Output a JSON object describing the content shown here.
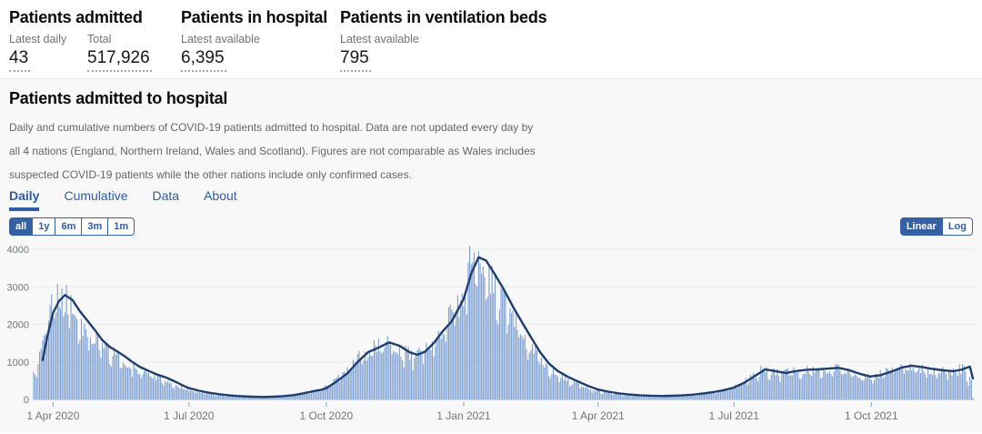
{
  "metrics": [
    {
      "title": "Patients admitted",
      "stats": [
        {
          "label": "Latest daily",
          "value": "43"
        },
        {
          "label": "Total",
          "value": "517,926"
        }
      ]
    },
    {
      "title": "Patients in hospital",
      "stats": [
        {
          "label": "Latest available",
          "value": "6,395"
        }
      ]
    },
    {
      "title": "Patients in ventilation beds",
      "stats": [
        {
          "label": "Latest available",
          "value": "795"
        }
      ]
    }
  ],
  "panel": {
    "title": "Patients admitted to hospital",
    "description_lines": [
      "Daily and cumulative numbers of COVID-19 patients admitted to hospital. Data are not updated every day by",
      "all 4 nations (England, Northern Ireland, Wales and Scotland). Figures are not comparable as Wales includes",
      "suspected COVID-19 patients while the other nations include only confirmed cases."
    ],
    "tabs": [
      {
        "label": "Daily",
        "active": true
      },
      {
        "label": "Cumulative",
        "active": false
      },
      {
        "label": "Data",
        "active": false
      },
      {
        "label": "About",
        "active": false
      }
    ],
    "range_buttons": [
      {
        "label": "all",
        "active": true
      },
      {
        "label": "1y",
        "active": false
      },
      {
        "label": "6m",
        "active": false
      },
      {
        "label": "3m",
        "active": false
      },
      {
        "label": "1m",
        "active": false
      }
    ],
    "scale_buttons": [
      {
        "label": "Linear",
        "active": true
      },
      {
        "label": "Log",
        "active": false
      }
    ]
  },
  "colors": {
    "bar": "#7d9fd1",
    "line": "#1e3f70",
    "grid": "#e9eaeb",
    "baseline": "#cfd1d3",
    "tick": "#9a9ea2",
    "axis_text": "#6f777b",
    "accent_blue": "#2e5ca8",
    "button_active_bg": "#3660a4"
  },
  "chart_data": {
    "type": "bar",
    "line_overlay": "7-day rolling average of daily hospital admissions",
    "title": "Daily COVID-19 patients admitted to hospital",
    "xlabel": "",
    "ylabel": "",
    "ylim": [
      0,
      4000
    ],
    "grid": true,
    "legend": "none",
    "yticks": [
      0,
      1000,
      2000,
      3000,
      4000
    ],
    "xticks": [
      "1 Apr 2020",
      "1 Jul 2020",
      "1 Oct 2020",
      "1 Jan 2021",
      "1 Apr 2021",
      "1 Jul 2021",
      "1 Oct 2021"
    ],
    "xtick_dates": [
      "2020-04-01",
      "2020-07-01",
      "2020-10-01",
      "2021-01-01",
      "2021-04-01",
      "2021-07-01",
      "2021-10-01"
    ],
    "date_range": [
      "2020-03-19",
      "2021-12-08"
    ],
    "line_draw_from": "2020-03-25",
    "avg_series": [
      [
        "2020-03-19",
        350
      ],
      [
        "2020-03-22",
        650
      ],
      [
        "2020-03-25",
        1050
      ],
      [
        "2020-03-28",
        1650
      ],
      [
        "2020-04-01",
        2300
      ],
      [
        "2020-04-05",
        2620
      ],
      [
        "2020-04-09",
        2780
      ],
      [
        "2020-04-14",
        2650
      ],
      [
        "2020-04-19",
        2350
      ],
      [
        "2020-04-24",
        2100
      ],
      [
        "2020-04-29",
        1850
      ],
      [
        "2020-05-04",
        1580
      ],
      [
        "2020-05-09",
        1400
      ],
      [
        "2020-05-14",
        1280
      ],
      [
        "2020-05-19",
        1150
      ],
      [
        "2020-05-24",
        1000
      ],
      [
        "2020-05-29",
        870
      ],
      [
        "2020-06-04",
        760
      ],
      [
        "2020-06-10",
        660
      ],
      [
        "2020-06-16",
        580
      ],
      [
        "2020-06-22",
        470
      ],
      [
        "2020-06-27",
        370
      ],
      [
        "2020-07-01",
        300
      ],
      [
        "2020-07-08",
        230
      ],
      [
        "2020-07-15",
        175
      ],
      [
        "2020-07-22",
        135
      ],
      [
        "2020-07-29",
        105
      ],
      [
        "2020-08-05",
        85
      ],
      [
        "2020-08-12",
        72
      ],
      [
        "2020-08-19",
        65
      ],
      [
        "2020-08-26",
        72
      ],
      [
        "2020-09-02",
        88
      ],
      [
        "2020-09-09",
        115
      ],
      [
        "2020-09-16",
        165
      ],
      [
        "2020-09-23",
        225
      ],
      [
        "2020-09-28",
        260
      ],
      [
        "2020-10-01",
        300
      ],
      [
        "2020-10-08",
        480
      ],
      [
        "2020-10-15",
        690
      ],
      [
        "2020-10-22",
        1000
      ],
      [
        "2020-10-29",
        1260
      ],
      [
        "2020-11-05",
        1380
      ],
      [
        "2020-11-12",
        1520
      ],
      [
        "2020-11-19",
        1430
      ],
      [
        "2020-11-26",
        1250
      ],
      [
        "2020-12-01",
        1190
      ],
      [
        "2020-12-06",
        1270
      ],
      [
        "2020-12-12",
        1500
      ],
      [
        "2020-12-18",
        1820
      ],
      [
        "2020-12-24",
        2080
      ],
      [
        "2020-12-28",
        2380
      ],
      [
        "2021-01-01",
        2680
      ],
      [
        "2021-01-06",
        3350
      ],
      [
        "2021-01-11",
        3790
      ],
      [
        "2021-01-16",
        3700
      ],
      [
        "2021-01-22",
        3320
      ],
      [
        "2021-01-28",
        2920
      ],
      [
        "2021-02-03",
        2470
      ],
      [
        "2021-02-09",
        2060
      ],
      [
        "2021-02-15",
        1660
      ],
      [
        "2021-02-21",
        1270
      ],
      [
        "2021-02-27",
        960
      ],
      [
        "2021-03-05",
        760
      ],
      [
        "2021-03-12",
        600
      ],
      [
        "2021-03-19",
        470
      ],
      [
        "2021-03-26",
        350
      ],
      [
        "2021-04-01",
        265
      ],
      [
        "2021-04-08",
        205
      ],
      [
        "2021-04-15",
        160
      ],
      [
        "2021-04-22",
        130
      ],
      [
        "2021-04-29",
        112
      ],
      [
        "2021-05-06",
        100
      ],
      [
        "2021-05-13",
        92
      ],
      [
        "2021-05-20",
        96
      ],
      [
        "2021-05-27",
        106
      ],
      [
        "2021-06-03",
        126
      ],
      [
        "2021-06-10",
        155
      ],
      [
        "2021-06-17",
        195
      ],
      [
        "2021-06-24",
        245
      ],
      [
        "2021-07-01",
        315
      ],
      [
        "2021-07-08",
        445
      ],
      [
        "2021-07-15",
        625
      ],
      [
        "2021-07-22",
        800
      ],
      [
        "2021-07-29",
        748
      ],
      [
        "2021-08-05",
        705
      ],
      [
        "2021-08-12",
        760
      ],
      [
        "2021-08-19",
        790
      ],
      [
        "2021-08-26",
        800
      ],
      [
        "2021-09-02",
        822
      ],
      [
        "2021-09-09",
        840
      ],
      [
        "2021-09-16",
        782
      ],
      [
        "2021-09-23",
        685
      ],
      [
        "2021-09-30",
        612
      ],
      [
        "2021-10-07",
        645
      ],
      [
        "2021-10-14",
        735
      ],
      [
        "2021-10-21",
        845
      ],
      [
        "2021-10-28",
        900
      ],
      [
        "2021-11-04",
        862
      ],
      [
        "2021-11-11",
        812
      ],
      [
        "2021-11-18",
        775
      ],
      [
        "2021-11-25",
        752
      ],
      [
        "2021-12-01",
        800
      ],
      [
        "2021-12-04",
        845
      ],
      [
        "2021-12-06",
        872
      ],
      [
        "2021-12-08",
        560
      ]
    ],
    "bar_overrides": {
      "2020-04-04": 3080,
      "2020-04-07": 2960,
      "2020-11-11": 1690,
      "2021-01-05": 4090,
      "2021-01-08": 3930,
      "2021-12-07": 520,
      "2021-12-08": 43
    }
  }
}
